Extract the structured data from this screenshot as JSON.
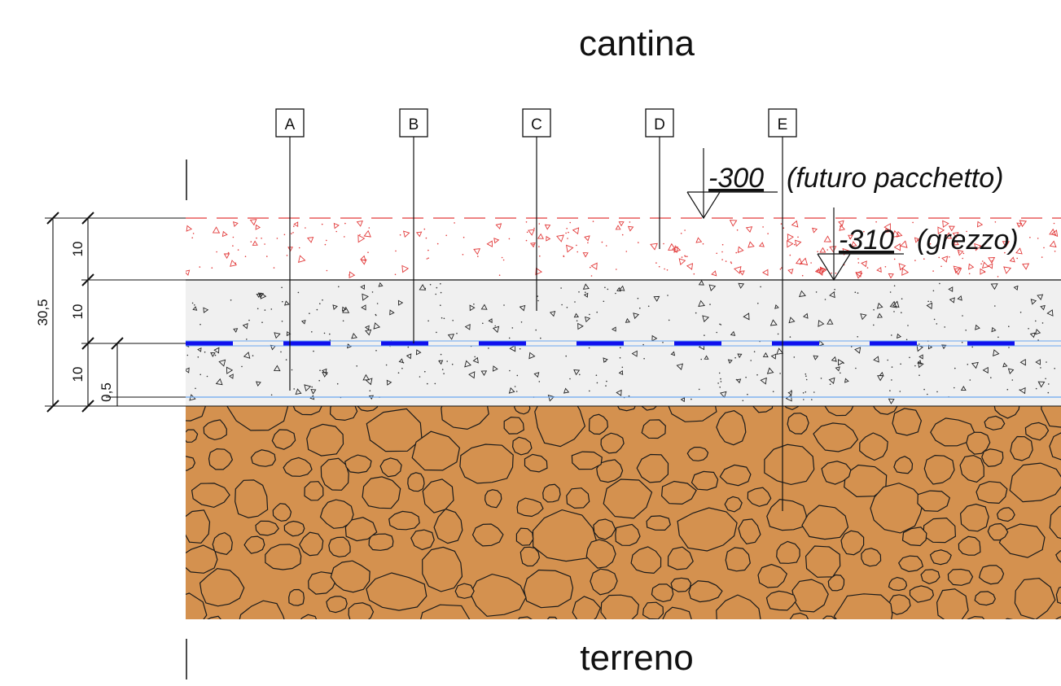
{
  "rooms": {
    "top": "cantina",
    "bottom": "terreno"
  },
  "callouts": [
    "A",
    "B",
    "C",
    "D",
    "E"
  ],
  "levels": {
    "finished": {
      "value": "-300",
      "note": "(futuro pacchetto)"
    },
    "rough": {
      "value": "-310",
      "note": "(grezzo)"
    }
  },
  "dimensions": {
    "total": "30,5",
    "layer_1": "10",
    "layer_2": "10",
    "layer_3": "10",
    "membrane": "0,5"
  },
  "colors": {
    "soil": "#d4914f",
    "screed_red": "#e23a3a",
    "concrete": "#f0f0f0",
    "membrane": "#1010ee",
    "membrane_light": "#6aa6f0",
    "line": "#111111"
  }
}
